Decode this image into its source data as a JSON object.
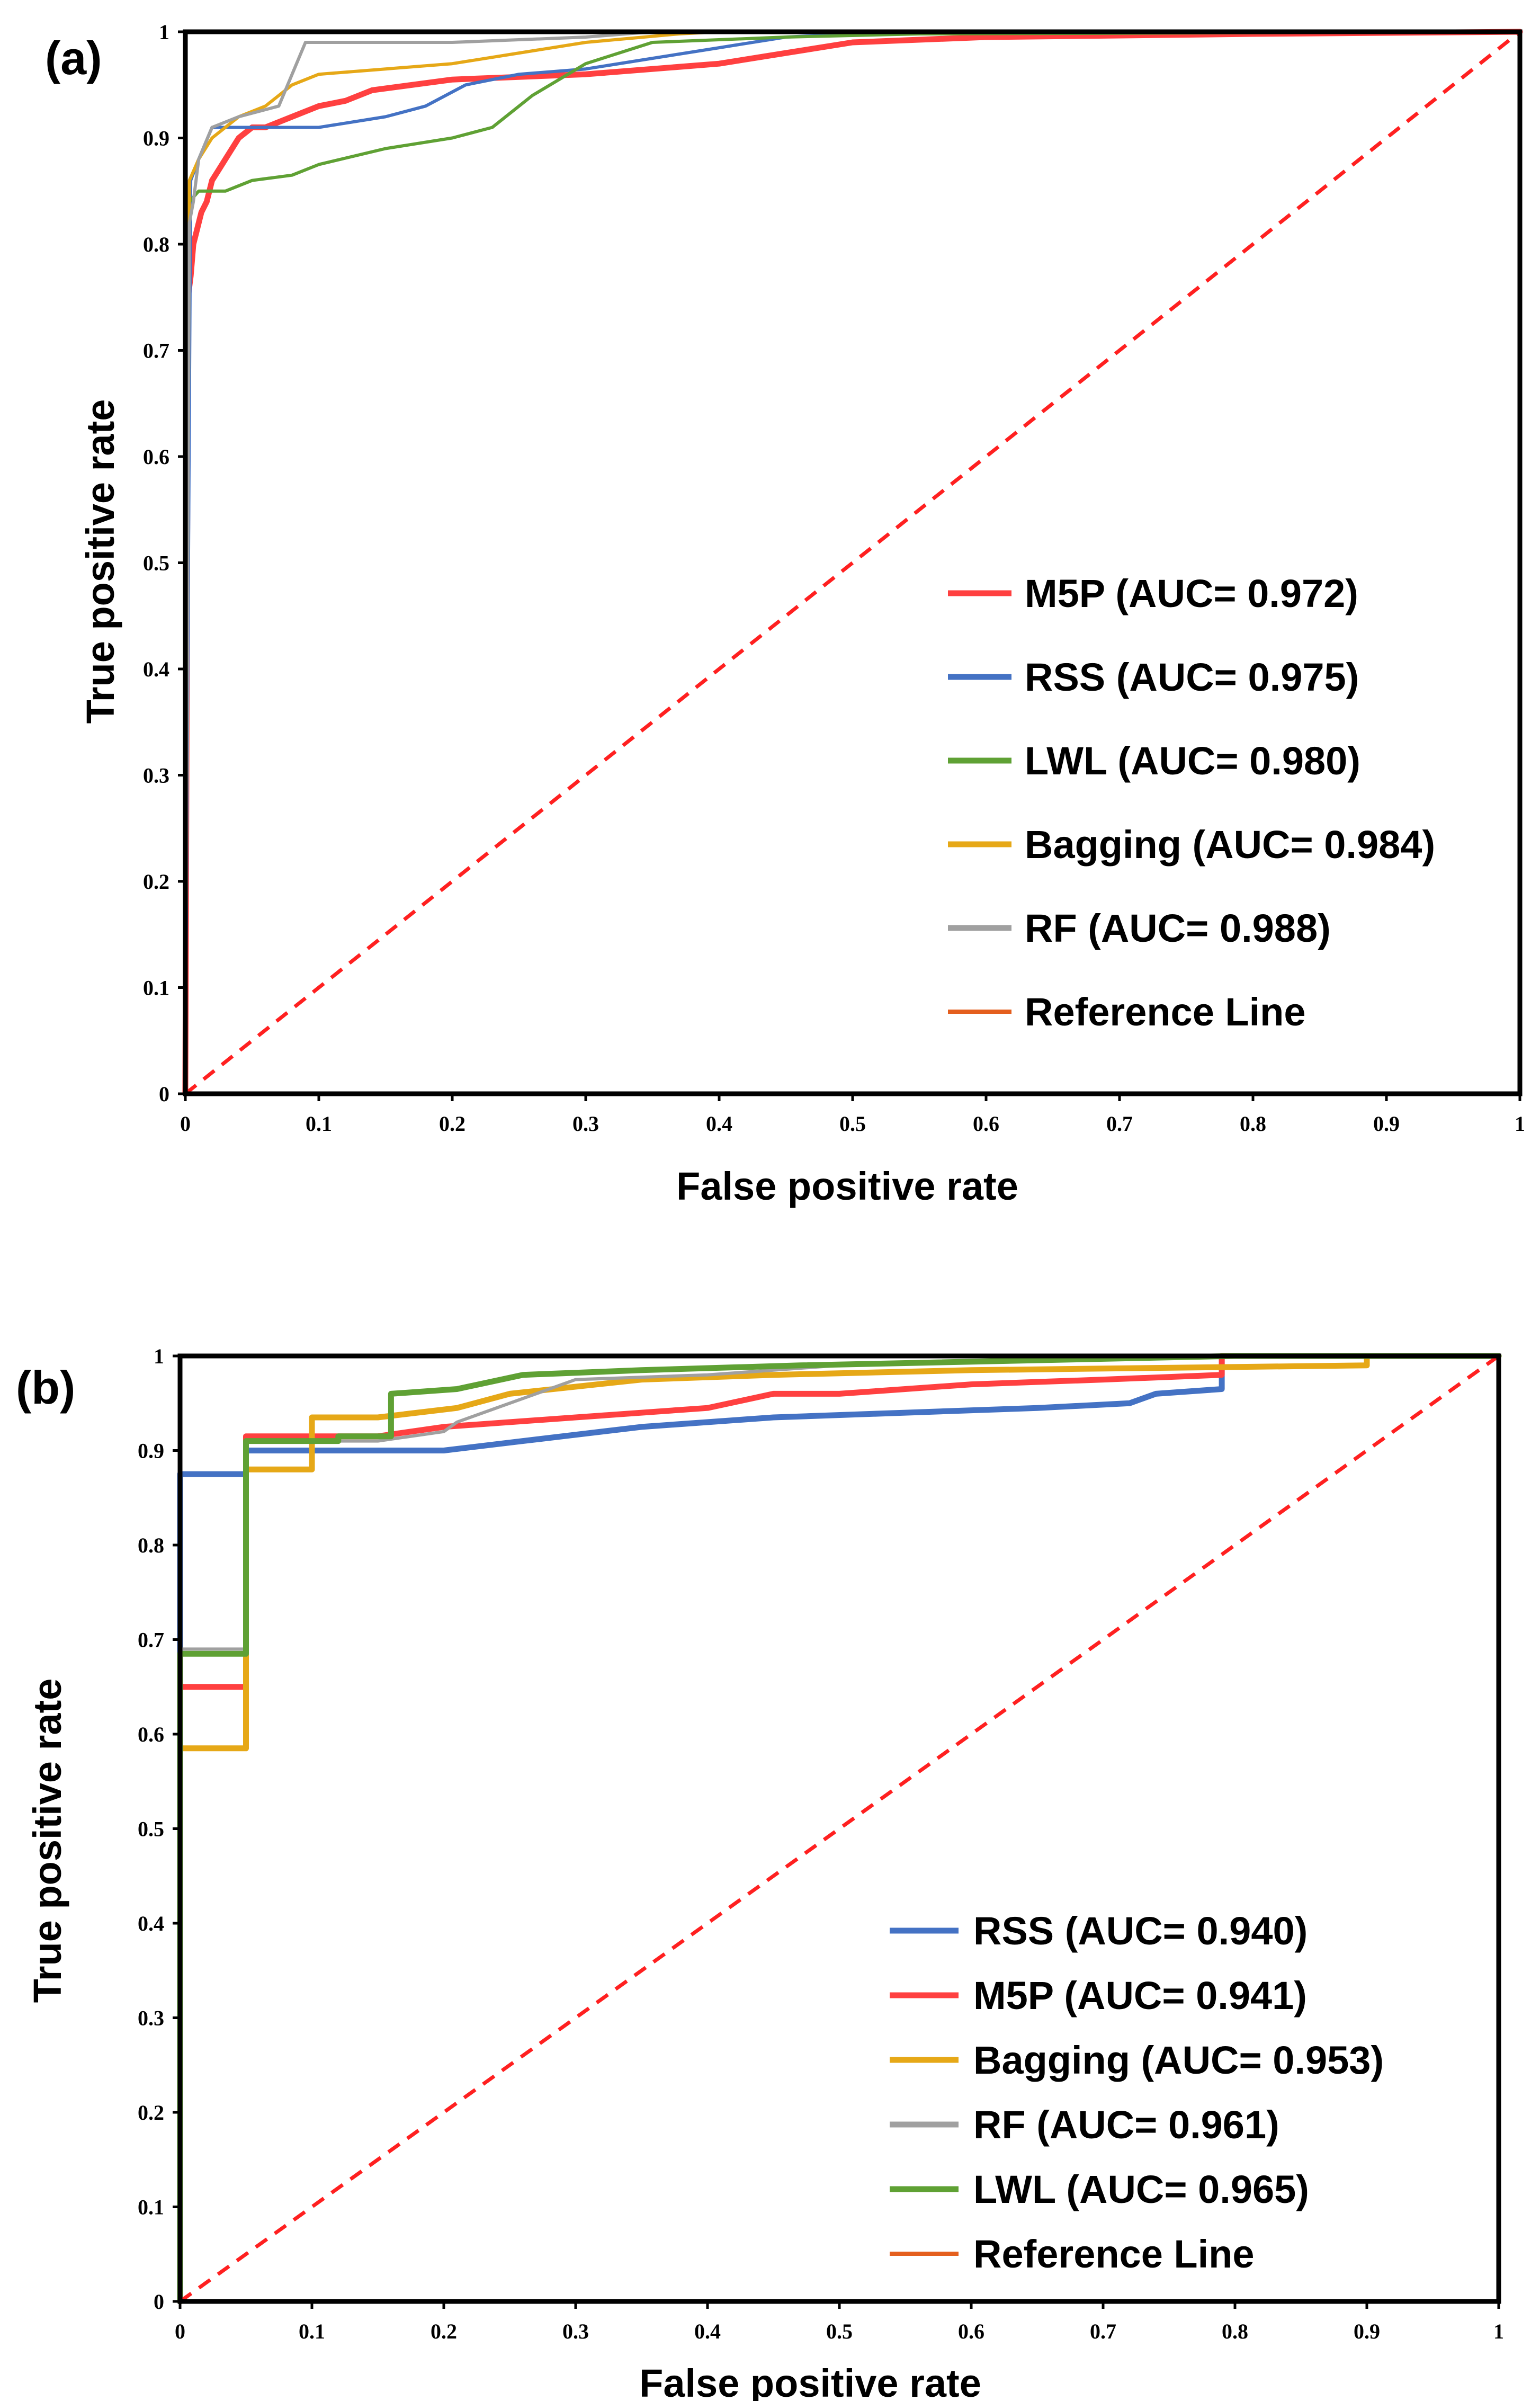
{
  "chart_data": [
    {
      "type": "line",
      "panel": "(a)",
      "xlabel": "False positive rate",
      "ylabel": "True positive rate",
      "xlim": [
        0,
        1
      ],
      "ylim": [
        0,
        1
      ],
      "xticks": [
        "0",
        "0.1",
        "0.2",
        "0.3",
        "0.4",
        "0.5",
        "0.6",
        "0.7",
        "0.8",
        "0.9",
        "1"
      ],
      "yticks": [
        "0",
        "0.1",
        "0.2",
        "0.3",
        "0.4",
        "0.5",
        "0.6",
        "0.7",
        "0.8",
        "0.9",
        "1"
      ],
      "legend_position": "center-right",
      "series": [
        {
          "name": "M5P",
          "label": "M5P (AUC= 0.972)",
          "color": "#ff4040",
          "width": "thick",
          "x": [
            0,
            0.002,
            0.004,
            0.006,
            0.008,
            0.012,
            0.016,
            0.02,
            0.025,
            0.03,
            0.04,
            0.05,
            0.06,
            0.08,
            0.1,
            0.12,
            0.14,
            0.2,
            0.3,
            0.4,
            0.45,
            0.5,
            0.6,
            0.8,
            1.0
          ],
          "y": [
            0,
            0.75,
            0.77,
            0.8,
            0.81,
            0.83,
            0.84,
            0.86,
            0.87,
            0.88,
            0.9,
            0.91,
            0.91,
            0.92,
            0.93,
            0.935,
            0.945,
            0.955,
            0.96,
            0.97,
            0.98,
            0.99,
            0.995,
            0.998,
            1.0
          ]
        },
        {
          "name": "RSS",
          "label": "RSS (AUC= 0.975)",
          "color": "#4472c4",
          "width": "thin",
          "x": [
            0,
            0.004,
            0.01,
            0.02,
            0.05,
            0.1,
            0.15,
            0.18,
            0.21,
            0.25,
            0.3,
            0.35,
            0.4,
            0.45,
            0.5,
            0.6,
            0.9,
            1.0
          ],
          "y": [
            0,
            0.86,
            0.88,
            0.91,
            0.91,
            0.91,
            0.92,
            0.93,
            0.95,
            0.96,
            0.965,
            0.975,
            0.985,
            0.995,
            0.998,
            1.0,
            1.0,
            1.0
          ],
          "segments_note": "rises to near 0.99 by 0.45 and stays"
        },
        {
          "name": "LWL",
          "label": "LWL (AUC= 0.980)",
          "color": "#5fa134",
          "width": "thin",
          "x": [
            0,
            0.003,
            0.01,
            0.03,
            0.05,
            0.08,
            0.1,
            0.15,
            0.2,
            0.23,
            0.26,
            0.3,
            0.35,
            0.45,
            0.55,
            1.0
          ],
          "y": [
            0,
            0.84,
            0.85,
            0.85,
            0.86,
            0.865,
            0.875,
            0.89,
            0.9,
            0.91,
            0.94,
            0.97,
            0.99,
            0.995,
            0.998,
            1.0
          ]
        },
        {
          "name": "Bagging",
          "label": "Bagging (AUC= 0.984)",
          "color": "#e6a817",
          "width": "thin",
          "x": [
            0,
            0.003,
            0.01,
            0.02,
            0.04,
            0.06,
            0.08,
            0.1,
            0.15,
            0.2,
            0.25,
            0.3,
            0.37,
            0.4,
            0.5,
            1.0
          ],
          "y": [
            0,
            0.86,
            0.88,
            0.9,
            0.92,
            0.93,
            0.95,
            0.96,
            0.965,
            0.97,
            0.98,
            0.99,
            0.998,
            1.0,
            1.0,
            1.0
          ]
        },
        {
          "name": "RF",
          "label": "RF  (AUC= 0.988)",
          "color": "#a0a0a0",
          "width": "thin",
          "x": [
            0,
            0.003,
            0.006,
            0.01,
            0.02,
            0.04,
            0.07,
            0.09,
            0.1,
            0.2,
            0.3,
            0.35,
            1.0
          ],
          "y": [
            0,
            0.82,
            0.84,
            0.88,
            0.91,
            0.92,
            0.93,
            0.99,
            0.99,
            0.99,
            0.995,
            1.0,
            1.0
          ]
        },
        {
          "name": "Reference Line",
          "label": "Reference Line",
          "color": "#e45f1e",
          "dash": true,
          "x": [
            0,
            1
          ],
          "y": [
            0,
            1
          ]
        }
      ]
    },
    {
      "type": "line",
      "panel": "(b)",
      "xlabel": "False positive rate",
      "ylabel": "True positive rate",
      "xlim": [
        0,
        1
      ],
      "ylim": [
        0,
        1
      ],
      "xticks": [
        "0",
        "0.1",
        "0.2",
        "0.3",
        "0.4",
        "0.5",
        "0.6",
        "0.7",
        "0.8",
        "0.9",
        "1"
      ],
      "yticks": [
        "0",
        "0.1",
        "0.2",
        "0.3",
        "0.4",
        "0.5",
        "0.6",
        "0.7",
        "0.8",
        "0.9",
        "1"
      ],
      "legend_position": "bottom-right",
      "series": [
        {
          "name": "RSS",
          "label": "RSS (AUC= 0.940)",
          "color": "#4472c4",
          "width": "thick",
          "x": [
            0,
            0,
            0.05,
            0.05,
            0.1,
            0.2,
            0.26,
            0.35,
            0.45,
            0.55,
            0.65,
            0.72,
            0.74,
            0.79,
            0.79,
            1.0
          ],
          "y": [
            0,
            0.875,
            0.875,
            0.9,
            0.9,
            0.9,
            0.91,
            0.925,
            0.935,
            0.94,
            0.945,
            0.95,
            0.96,
            0.965,
            1.0,
            1.0
          ]
        },
        {
          "name": "M5P",
          "label": "M5P (AUC= 0.941)",
          "color": "#ff4040",
          "width": "thick",
          "x": [
            0,
            0,
            0.05,
            0.05,
            0.15,
            0.2,
            0.3,
            0.4,
            0.45,
            0.5,
            0.6,
            0.7,
            0.79,
            0.79,
            1.0
          ],
          "y": [
            0,
            0.65,
            0.65,
            0.915,
            0.915,
            0.925,
            0.935,
            0.945,
            0.96,
            0.96,
            0.97,
            0.975,
            0.98,
            1.0,
            1.0
          ]
        },
        {
          "name": "Bagging",
          "label": "Bagging (AUC= 0.953)",
          "color": "#e6a817",
          "width": "thick",
          "x": [
            0,
            0,
            0.05,
            0.05,
            0.1,
            0.1,
            0.15,
            0.21,
            0.25,
            0.35,
            0.45,
            0.6,
            0.9,
            0.9,
            1.0
          ],
          "y": [
            0,
            0.585,
            0.585,
            0.88,
            0.88,
            0.935,
            0.935,
            0.945,
            0.96,
            0.975,
            0.98,
            0.985,
            0.99,
            1.0,
            1.0
          ]
        },
        {
          "name": "RF",
          "label": "RF (AUC= 0.961)",
          "color": "#a0a0a0",
          "width": "thin",
          "x": [
            0,
            0,
            0.05,
            0.05,
            0.15,
            0.2,
            0.21,
            0.3,
            0.4,
            0.5,
            0.6,
            0.8,
            1.0
          ],
          "y": [
            0,
            0.69,
            0.69,
            0.91,
            0.91,
            0.92,
            0.93,
            0.975,
            0.98,
            0.99,
            0.995,
            1.0,
            1.0
          ]
        },
        {
          "name": "LWL",
          "label": "LWL (AUC= 0.965)",
          "color": "#5fa134",
          "width": "thick",
          "x": [
            0,
            0,
            0.05,
            0.05,
            0.12,
            0.12,
            0.16,
            0.16,
            0.21,
            0.26,
            0.35,
            0.47,
            0.8,
            1.0
          ],
          "y": [
            0,
            0.685,
            0.685,
            0.91,
            0.91,
            0.915,
            0.915,
            0.96,
            0.965,
            0.98,
            0.985,
            0.99,
            1.0,
            1.0
          ]
        },
        {
          "name": "Reference Line",
          "label": "Reference Line",
          "color": "#e45f1e",
          "dash": true,
          "x": [
            0,
            1
          ],
          "y": [
            0,
            1
          ]
        }
      ]
    }
  ]
}
